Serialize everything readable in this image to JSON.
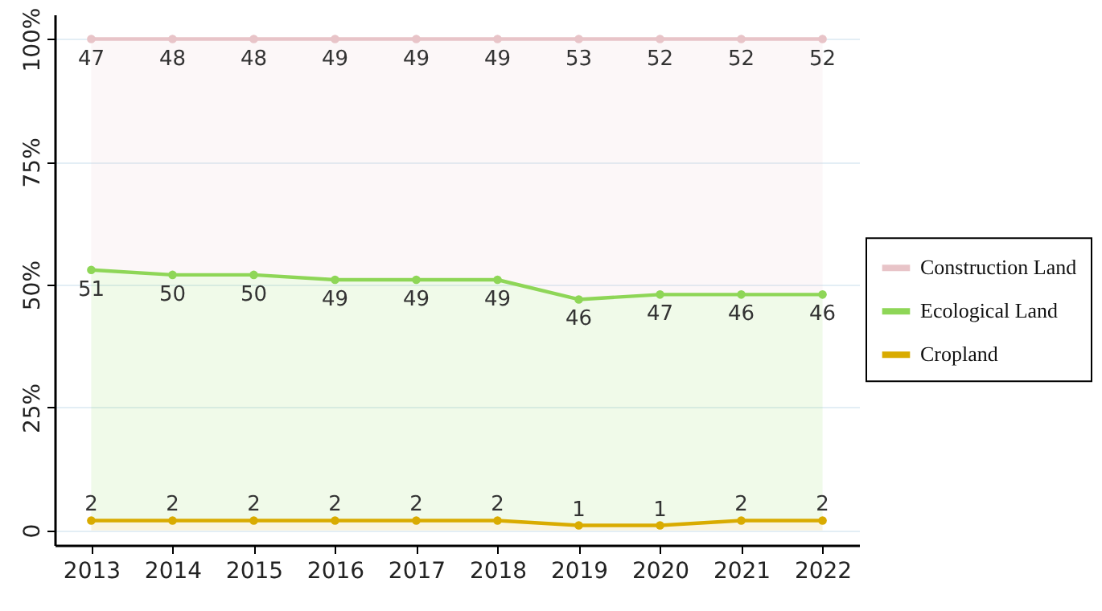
{
  "chart_data": {
    "type": "area",
    "stacked": true,
    "categories": [
      "2013",
      "2014",
      "2015",
      "2016",
      "2017",
      "2018",
      "2019",
      "2020",
      "2021",
      "2022"
    ],
    "series": [
      {
        "name": "Cropland",
        "color": "#d9ab00",
        "values": [
          2,
          2,
          2,
          2,
          2,
          2,
          1,
          1,
          2,
          2
        ]
      },
      {
        "name": "Ecological Land",
        "color": "#8ed657",
        "values": [
          51,
          50,
          50,
          49,
          49,
          49,
          46,
          47,
          46,
          46
        ]
      },
      {
        "name": "Construction Land",
        "color": "#e8c4c8",
        "values": [
          47,
          48,
          48,
          49,
          49,
          49,
          53,
          52,
          52,
          52
        ]
      }
    ],
    "ylim": [
      -3,
      105
    ],
    "yticks": [
      0,
      {
        "value": 25,
        "label": "25%"
      },
      {
        "value": 50,
        "label": "50%"
      },
      {
        "value": 75,
        "label": "75%"
      },
      {
        "value": 100,
        "label": "100%"
      }
    ],
    "grid": "y",
    "legend": "right",
    "marker": "circle",
    "data_labels": true
  }
}
